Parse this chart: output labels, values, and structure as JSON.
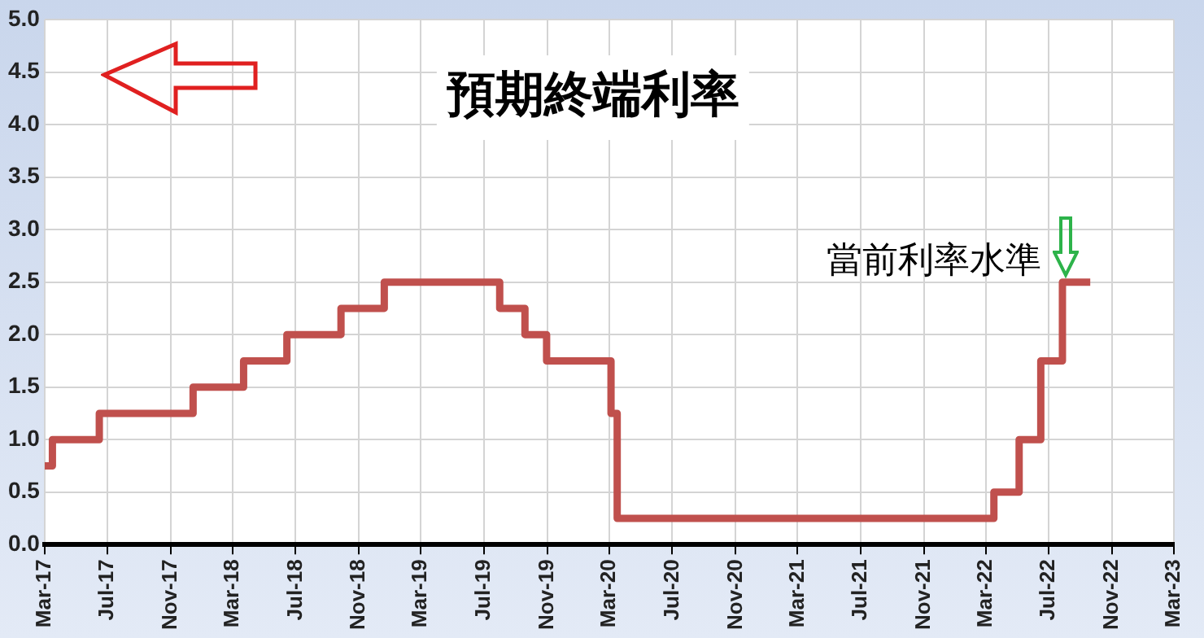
{
  "chart_data": {
    "type": "step",
    "x": [
      "2017-03-01",
      "2017-03-16",
      "2017-06-15",
      "2017-12-14",
      "2018-03-22",
      "2018-06-14",
      "2018-09-27",
      "2018-12-20",
      "2019-08-01",
      "2019-09-19",
      "2019-10-31",
      "2020-03-04",
      "2020-03-16",
      "2022-03-17",
      "2022-05-05",
      "2022-06-16",
      "2022-07-28",
      "2022-09-20"
    ],
    "series": [
      {
        "color": "#c0504d",
        "values": [
          0.75,
          1.0,
          1.25,
          1.5,
          1.75,
          2.0,
          2.25,
          2.5,
          2.25,
          2.0,
          1.75,
          1.25,
          0.25,
          0.5,
          1.0,
          1.75,
          2.5,
          2.5
        ]
      }
    ],
    "xlim": [
      "2017-03",
      "2023-03"
    ],
    "xticks": [
      {
        "value": "2017-03",
        "label": "Mar-17"
      },
      {
        "value": "2017-07",
        "label": "Jul-17"
      },
      {
        "value": "2017-11",
        "label": "Nov-17"
      },
      {
        "value": "2018-03",
        "label": "Mar-18"
      },
      {
        "value": "2018-07",
        "label": "Jul-18"
      },
      {
        "value": "2018-11",
        "label": "Nov-18"
      },
      {
        "value": "2019-03",
        "label": "Mar-19"
      },
      {
        "value": "2019-07",
        "label": "Jul-19"
      },
      {
        "value": "2019-11",
        "label": "Nov-19"
      },
      {
        "value": "2020-03",
        "label": "Mar-20"
      },
      {
        "value": "2020-07",
        "label": "Jul-20"
      },
      {
        "value": "2020-11",
        "label": "Nov-20"
      },
      {
        "value": "2021-03",
        "label": "Mar-21"
      },
      {
        "value": "2021-07",
        "label": "Jul-21"
      },
      {
        "value": "2021-11",
        "label": "Nov-21"
      },
      {
        "value": "2022-03",
        "label": "Mar-22"
      },
      {
        "value": "2022-07",
        "label": "Jul-22"
      },
      {
        "value": "2022-11",
        "label": "Nov-22"
      },
      {
        "value": "2023-03",
        "label": "Mar-23"
      }
    ],
    "ylim": [
      0,
      5
    ],
    "yticks": [
      {
        "value": 0,
        "label": "0.0"
      },
      {
        "value": 0.5,
        "label": "0.5"
      },
      {
        "value": 1,
        "label": "1.0"
      },
      {
        "value": 1.5,
        "label": "1.5"
      },
      {
        "value": 2,
        "label": "2.0"
      },
      {
        "value": 2.5,
        "label": "2.5"
      },
      {
        "value": 3,
        "label": "3.0"
      },
      {
        "value": 3.5,
        "label": "3.5"
      },
      {
        "value": 4,
        "label": "4.0"
      },
      {
        "value": 4.5,
        "label": "4.5"
      },
      {
        "value": 5,
        "label": "5.0"
      }
    ],
    "grid": true,
    "legend": false,
    "marker": "none",
    "line_style": "solid",
    "annotations": [
      "預期終端利率",
      {
        "text": "當前利率水準",
        "x": "2022-09-20",
        "y": 2.5
      }
    ]
  }
}
